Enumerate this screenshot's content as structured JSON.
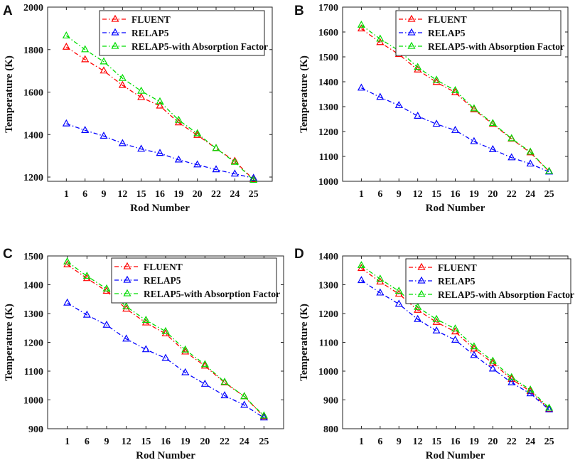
{
  "colors": {
    "fluent": "#ff0000",
    "relap5": "#0000ff",
    "absorption": "#00dd00"
  },
  "chart_data": [
    {
      "type": "line",
      "panel": "A",
      "categories": [
        "1",
        "6",
        "9",
        "12",
        "15",
        "16",
        "19",
        "20",
        "22",
        "24",
        "25"
      ],
      "ylim": [
        1180,
        2000
      ],
      "yticks": [
        1200,
        1400,
        1600,
        1800,
        2000
      ],
      "xlabel": "Rod Number",
      "ylabel": "Temperature (K)",
      "legend_position": "top-right",
      "series": [
        {
          "name": "FLUENT",
          "color_key": "fluent",
          "values": [
            1812,
            1753,
            1700,
            1632,
            1575,
            1535,
            1456,
            1397,
            1335,
            1275,
            1188
          ]
        },
        {
          "name": "RELAP5",
          "color_key": "relap5",
          "values": [
            1451,
            1420,
            1393,
            1358,
            1332,
            1312,
            1281,
            1258,
            1235,
            1215,
            1195
          ]
        },
        {
          "name": "RELAP5-with Absorption Factor",
          "color_key": "absorption",
          "values": [
            1865,
            1800,
            1743,
            1665,
            1605,
            1555,
            1468,
            1405,
            1335,
            1270,
            1185
          ]
        }
      ]
    },
    {
      "type": "line",
      "panel": "B",
      "categories": [
        "1",
        "6",
        "9",
        "12",
        "15",
        "16",
        "19",
        "20",
        "22",
        "24",
        "25"
      ],
      "ylim": [
        1000,
        1700
      ],
      "yticks": [
        1000,
        1100,
        1200,
        1300,
        1400,
        1500,
        1600,
        1700
      ],
      "xlabel": "Rod Number",
      "ylabel": "Temperature (K)",
      "legend_position": "top-right",
      "series": [
        {
          "name": "FLUENT",
          "color_key": "fluent",
          "values": [
            1613,
            1558,
            1510,
            1448,
            1398,
            1357,
            1288,
            1230,
            1170,
            1115,
            1040
          ]
        },
        {
          "name": "RELAP5",
          "color_key": "relap5",
          "values": [
            1375,
            1338,
            1305,
            1262,
            1230,
            1205,
            1160,
            1128,
            1095,
            1070,
            1038
          ]
        },
        {
          "name": "RELAP5-with Absorption Factor",
          "color_key": "absorption",
          "values": [
            1628,
            1572,
            1525,
            1458,
            1407,
            1365,
            1292,
            1233,
            1172,
            1118,
            1040
          ]
        }
      ]
    },
    {
      "type": "line",
      "panel": "C",
      "categories": [
        "1",
        "6",
        "9",
        "12",
        "15",
        "16",
        "19",
        "20",
        "22",
        "24",
        "25"
      ],
      "ylim": [
        900,
        1500
      ],
      "yticks": [
        900,
        1000,
        1100,
        1200,
        1300,
        1400,
        1500
      ],
      "xlabel": "Rod Number",
      "ylabel": "Temperature (K)",
      "legend_position": "top-right",
      "series": [
        {
          "name": "FLUENT",
          "color_key": "fluent",
          "values": [
            1470,
            1422,
            1378,
            1316,
            1268,
            1230,
            1167,
            1118,
            1060,
            1012,
            942
          ]
        },
        {
          "name": "RELAP5",
          "color_key": "relap5",
          "values": [
            1337,
            1295,
            1260,
            1212,
            1175,
            1145,
            1095,
            1055,
            1015,
            982,
            938
          ]
        },
        {
          "name": "RELAP5-with Absorption Factor",
          "color_key": "absorption",
          "values": [
            1480,
            1430,
            1386,
            1324,
            1277,
            1238,
            1174,
            1123,
            1062,
            1012,
            945
          ]
        }
      ]
    },
    {
      "type": "line",
      "panel": "D",
      "categories": [
        "1",
        "6",
        "9",
        "12",
        "15",
        "16",
        "19",
        "20",
        "22",
        "24",
        "25"
      ],
      "ylim": [
        800,
        1400
      ],
      "yticks": [
        800,
        900,
        1000,
        1100,
        1200,
        1300,
        1400
      ],
      "xlabel": "Rod Number",
      "ylabel": "Temperature (K)",
      "legend_position": "top-right",
      "series": [
        {
          "name": "FLUENT",
          "color_key": "fluent",
          "values": [
            1357,
            1310,
            1268,
            1212,
            1170,
            1137,
            1077,
            1028,
            972,
            930,
            868
          ]
        },
        {
          "name": "RELAP5",
          "color_key": "relap5",
          "values": [
            1315,
            1272,
            1233,
            1180,
            1140,
            1108,
            1055,
            1008,
            960,
            922,
            866
          ]
        },
        {
          "name": "RELAP5-with Absorption Factor",
          "color_key": "absorption",
          "values": [
            1367,
            1320,
            1278,
            1222,
            1180,
            1147,
            1085,
            1035,
            978,
            935,
            872
          ]
        }
      ]
    }
  ]
}
